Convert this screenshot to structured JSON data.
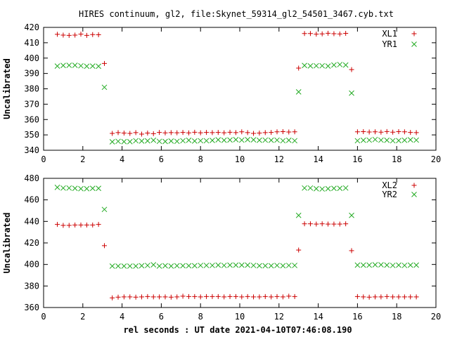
{
  "figure_title": "HIRES continuum, gl2, file:Skynet_59314_gl2_54501_3467.cyb.txt",
  "xlabel": "rel seconds : UT date 2021-04-10T07:46:08.190",
  "colors": {
    "series_a": "#cc0000",
    "series_b": "#22aa22",
    "axis": "#000000"
  },
  "chart_data": [
    {
      "type": "scatter",
      "ylabel": "Uncalibrated",
      "xlim": [
        0,
        20
      ],
      "ylim": [
        340,
        420
      ],
      "xticks": [
        0,
        2,
        4,
        6,
        8,
        10,
        12,
        14,
        16,
        18,
        20
      ],
      "yticks": [
        340,
        350,
        360,
        370,
        380,
        390,
        400,
        410,
        420
      ],
      "legend_position": "top-right",
      "series": [
        {
          "name": "XL1",
          "marker": "plus",
          "points": [
            [
              0.7,
              415.5
            ],
            [
              1.0,
              415.0
            ],
            [
              1.3,
              414.8
            ],
            [
              1.6,
              415.0
            ],
            [
              1.9,
              415.6
            ],
            [
              2.2,
              414.8
            ],
            [
              2.5,
              415.3
            ],
            [
              2.8,
              415.2
            ],
            [
              3.1,
              396.5
            ],
            [
              3.5,
              351.0
            ],
            [
              3.8,
              351.5
            ],
            [
              4.1,
              351.2
            ],
            [
              4.4,
              351.0
            ],
            [
              4.7,
              351.5
            ],
            [
              5.0,
              350.5
            ],
            [
              5.3,
              351.2
            ],
            [
              5.6,
              350.8
            ],
            [
              5.9,
              351.6
            ],
            [
              6.2,
              351.3
            ],
            [
              6.5,
              351.5
            ],
            [
              6.8,
              351.4
            ],
            [
              7.1,
              351.6
            ],
            [
              7.4,
              351.3
            ],
            [
              7.7,
              351.7
            ],
            [
              8.0,
              351.4
            ],
            [
              8.3,
              351.6
            ],
            [
              8.6,
              351.5
            ],
            [
              8.9,
              351.6
            ],
            [
              9.2,
              351.4
            ],
            [
              9.5,
              351.7
            ],
            [
              9.8,
              351.5
            ],
            [
              10.1,
              352.0
            ],
            [
              10.4,
              351.5
            ],
            [
              10.7,
              351.0
            ],
            [
              11.0,
              351.2
            ],
            [
              11.3,
              351.5
            ],
            [
              11.6,
              351.6
            ],
            [
              11.9,
              352.0
            ],
            [
              12.2,
              352.1
            ],
            [
              12.5,
              351.9
            ],
            [
              12.8,
              352.0
            ],
            [
              13.0,
              393.5
            ],
            [
              13.3,
              416.0
            ],
            [
              13.6,
              416.0
            ],
            [
              13.9,
              415.6
            ],
            [
              14.2,
              415.8
            ],
            [
              14.5,
              416.2
            ],
            [
              14.8,
              415.9
            ],
            [
              15.1,
              415.7
            ],
            [
              15.4,
              416.1
            ],
            [
              15.7,
              392.5
            ],
            [
              16.0,
              352.0
            ],
            [
              16.3,
              352.1
            ],
            [
              16.6,
              351.9
            ],
            [
              16.9,
              352.0
            ],
            [
              17.2,
              351.8
            ],
            [
              17.5,
              352.2
            ],
            [
              17.8,
              351.8
            ],
            [
              18.1,
              352.1
            ],
            [
              18.4,
              352.0
            ],
            [
              18.7,
              351.6
            ],
            [
              19.0,
              351.5
            ]
          ]
        },
        {
          "name": "YR1",
          "marker": "cross",
          "points": [
            [
              0.7,
              394.8
            ],
            [
              1.0,
              395.2
            ],
            [
              1.3,
              395.3
            ],
            [
              1.6,
              395.3
            ],
            [
              1.9,
              395.0
            ],
            [
              2.2,
              394.7
            ],
            [
              2.5,
              394.8
            ],
            [
              2.8,
              394.7
            ],
            [
              3.1,
              381.0
            ],
            [
              3.5,
              345.5
            ],
            [
              3.8,
              345.8
            ],
            [
              4.1,
              345.6
            ],
            [
              4.4,
              345.6
            ],
            [
              4.7,
              346.2
            ],
            [
              5.0,
              346.0
            ],
            [
              5.3,
              346.1
            ],
            [
              5.6,
              346.5
            ],
            [
              5.9,
              345.8
            ],
            [
              6.2,
              345.7
            ],
            [
              6.5,
              346.0
            ],
            [
              6.8,
              345.8
            ],
            [
              7.1,
              346.2
            ],
            [
              7.4,
              346.5
            ],
            [
              7.7,
              346.0
            ],
            [
              8.0,
              346.2
            ],
            [
              8.3,
              346.2
            ],
            [
              8.6,
              346.4
            ],
            [
              8.9,
              346.8
            ],
            [
              9.2,
              346.5
            ],
            [
              9.5,
              346.7
            ],
            [
              9.8,
              346.9
            ],
            [
              10.1,
              346.6
            ],
            [
              10.4,
              346.9
            ],
            [
              10.7,
              346.8
            ],
            [
              11.0,
              346.5
            ],
            [
              11.3,
              346.6
            ],
            [
              11.6,
              346.5
            ],
            [
              11.9,
              346.6
            ],
            [
              12.2,
              346.2
            ],
            [
              12.5,
              346.5
            ],
            [
              12.8,
              346.2
            ],
            [
              13.0,
              378.0
            ],
            [
              13.3,
              395.2
            ],
            [
              13.6,
              394.9
            ],
            [
              13.9,
              395.0
            ],
            [
              14.2,
              395.0
            ],
            [
              14.5,
              394.8
            ],
            [
              14.8,
              395.5
            ],
            [
              15.1,
              395.8
            ],
            [
              15.4,
              395.5
            ],
            [
              15.7,
              377.2
            ],
            [
              16.0,
              346.2
            ],
            [
              16.3,
              346.5
            ],
            [
              16.6,
              346.6
            ],
            [
              16.9,
              347.0
            ],
            [
              17.2,
              346.6
            ],
            [
              17.5,
              346.5
            ],
            [
              17.8,
              346.2
            ],
            [
              18.1,
              346.3
            ],
            [
              18.4,
              346.5
            ],
            [
              18.7,
              346.8
            ],
            [
              19.0,
              346.6
            ]
          ]
        }
      ]
    },
    {
      "type": "scatter",
      "ylabel": "Uncalibrated",
      "xlim": [
        0,
        20
      ],
      "ylim": [
        360,
        480
      ],
      "xticks": [
        0,
        2,
        4,
        6,
        8,
        10,
        12,
        14,
        16,
        18,
        20
      ],
      "yticks": [
        360,
        380,
        400,
        420,
        440,
        460,
        480
      ],
      "legend_position": "top-right",
      "series": [
        {
          "name": "XL2",
          "marker": "plus",
          "points": [
            [
              0.7,
              437.2
            ],
            [
              1.0,
              436.3
            ],
            [
              1.3,
              436.3
            ],
            [
              1.6,
              436.6
            ],
            [
              1.9,
              436.6
            ],
            [
              2.2,
              436.6
            ],
            [
              2.5,
              436.6
            ],
            [
              2.8,
              437.2
            ],
            [
              3.1,
              417.5
            ],
            [
              3.5,
              369.0
            ],
            [
              3.8,
              369.6
            ],
            [
              4.1,
              369.9
            ],
            [
              4.4,
              369.9
            ],
            [
              4.7,
              369.6
            ],
            [
              5.0,
              369.9
            ],
            [
              5.3,
              370.2
            ],
            [
              5.6,
              369.9
            ],
            [
              5.9,
              369.9
            ],
            [
              6.2,
              369.9
            ],
            [
              6.5,
              369.6
            ],
            [
              6.8,
              369.9
            ],
            [
              7.1,
              370.5
            ],
            [
              7.4,
              370.2
            ],
            [
              7.7,
              370.2
            ],
            [
              8.0,
              369.9
            ],
            [
              8.3,
              370.2
            ],
            [
              8.6,
              370.2
            ],
            [
              8.9,
              370.2
            ],
            [
              9.2,
              369.9
            ],
            [
              9.5,
              370.2
            ],
            [
              9.8,
              370.2
            ],
            [
              10.1,
              369.9
            ],
            [
              10.4,
              370.2
            ],
            [
              10.7,
              369.9
            ],
            [
              11.0,
              369.9
            ],
            [
              11.3,
              370.2
            ],
            [
              11.6,
              369.9
            ],
            [
              11.9,
              370.2
            ],
            [
              12.2,
              369.9
            ],
            [
              12.5,
              370.5
            ],
            [
              12.8,
              370.2
            ],
            [
              13.0,
              413.4
            ],
            [
              13.3,
              437.8
            ],
            [
              13.6,
              437.8
            ],
            [
              13.9,
              437.5
            ],
            [
              14.2,
              437.8
            ],
            [
              14.5,
              437.5
            ],
            [
              14.8,
              437.5
            ],
            [
              15.1,
              437.5
            ],
            [
              15.4,
              437.8
            ],
            [
              15.7,
              412.8
            ],
            [
              16.0,
              370.2
            ],
            [
              16.3,
              369.9
            ],
            [
              16.6,
              369.6
            ],
            [
              16.9,
              369.9
            ],
            [
              17.2,
              369.9
            ],
            [
              17.5,
              370.2
            ],
            [
              17.8,
              369.9
            ],
            [
              18.1,
              369.9
            ],
            [
              18.4,
              369.9
            ],
            [
              18.7,
              369.9
            ],
            [
              19.0,
              369.9
            ]
          ]
        },
        {
          "name": "YR2",
          "marker": "cross",
          "points": [
            [
              0.7,
              471.6
            ],
            [
              1.0,
              471.0
            ],
            [
              1.3,
              471.0
            ],
            [
              1.6,
              470.7
            ],
            [
              1.9,
              470.4
            ],
            [
              2.2,
              470.4
            ],
            [
              2.5,
              470.7
            ],
            [
              2.8,
              470.7
            ],
            [
              3.1,
              451.1
            ],
            [
              3.5,
              398.5
            ],
            [
              3.8,
              398.5
            ],
            [
              4.1,
              398.5
            ],
            [
              4.4,
              398.5
            ],
            [
              4.7,
              398.5
            ],
            [
              5.0,
              398.8
            ],
            [
              5.3,
              399.1
            ],
            [
              5.6,
              399.7
            ],
            [
              5.9,
              398.5
            ],
            [
              6.2,
              398.8
            ],
            [
              6.5,
              398.5
            ],
            [
              6.8,
              398.8
            ],
            [
              7.1,
              398.8
            ],
            [
              7.4,
              398.8
            ],
            [
              7.7,
              398.8
            ],
            [
              8.0,
              399.1
            ],
            [
              8.3,
              399.1
            ],
            [
              8.6,
              399.1
            ],
            [
              8.9,
              399.4
            ],
            [
              9.2,
              399.1
            ],
            [
              9.5,
              399.4
            ],
            [
              9.8,
              399.4
            ],
            [
              10.1,
              399.4
            ],
            [
              10.4,
              399.4
            ],
            [
              10.7,
              399.1
            ],
            [
              11.0,
              398.8
            ],
            [
              11.3,
              398.8
            ],
            [
              11.6,
              398.8
            ],
            [
              11.9,
              399.1
            ],
            [
              12.2,
              398.8
            ],
            [
              12.5,
              399.1
            ],
            [
              12.8,
              399.1
            ],
            [
              13.0,
              445.6
            ],
            [
              13.3,
              471.0
            ],
            [
              13.6,
              471.0
            ],
            [
              13.9,
              470.4
            ],
            [
              14.2,
              470.1
            ],
            [
              14.5,
              470.4
            ],
            [
              14.8,
              470.7
            ],
            [
              15.1,
              470.7
            ],
            [
              15.4,
              471.0
            ],
            [
              15.7,
              445.6
            ],
            [
              16.0,
              399.4
            ],
            [
              16.3,
              399.4
            ],
            [
              16.6,
              399.4
            ],
            [
              16.9,
              399.7
            ],
            [
              17.2,
              399.7
            ],
            [
              17.5,
              399.4
            ],
            [
              17.8,
              399.1
            ],
            [
              18.1,
              399.4
            ],
            [
              18.4,
              399.1
            ],
            [
              18.7,
              399.4
            ],
            [
              19.0,
              399.4
            ]
          ]
        }
      ]
    }
  ]
}
